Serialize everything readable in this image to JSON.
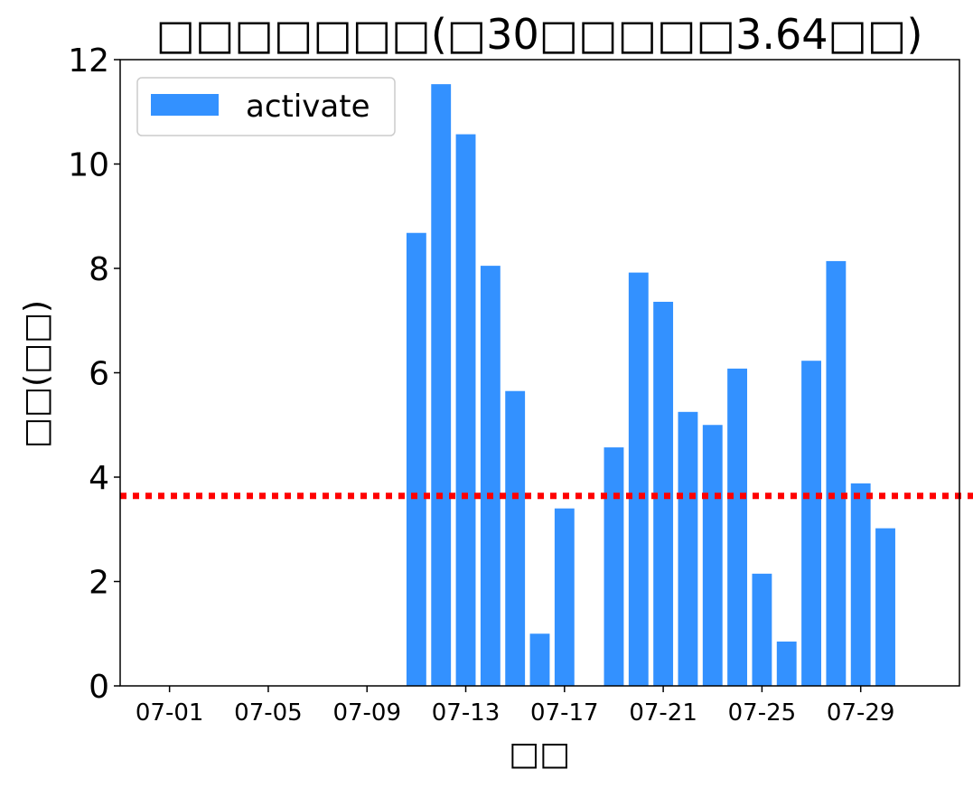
{
  "chart_data": {
    "type": "bar",
    "title": "□□□□□□□(□30□□□□□3.64□□)",
    "xlabel": "□□",
    "ylabel": "□□(□□)",
    "xlim": [
      "06-29",
      "08-02"
    ],
    "ylim": [
      0,
      12
    ],
    "yticks": [
      0,
      2,
      4,
      6,
      8,
      10,
      12
    ],
    "xticks": [
      "07-01",
      "07-05",
      "07-09",
      "07-13",
      "07-17",
      "07-21",
      "07-25",
      "07-29"
    ],
    "grid": false,
    "legend": "top-left",
    "reference_line": {
      "value": 3.64,
      "color": "#ff0000",
      "style": "dotted"
    },
    "series": [
      {
        "name": "activate",
        "color": "#3391ff",
        "x": [
          "07-11",
          "07-12",
          "07-13",
          "07-14",
          "07-15",
          "07-16",
          "07-17",
          "07-19",
          "07-20",
          "07-21",
          "07-22",
          "07-23",
          "07-24",
          "07-25",
          "07-26",
          "07-27",
          "07-28",
          "07-29",
          "07-30"
        ],
        "values": [
          8.68,
          11.53,
          10.57,
          8.05,
          5.65,
          1.0,
          3.4,
          4.57,
          7.92,
          7.36,
          5.25,
          5.0,
          6.08,
          2.15,
          0.85,
          6.23,
          8.14,
          3.88,
          3.02
        ]
      }
    ]
  }
}
